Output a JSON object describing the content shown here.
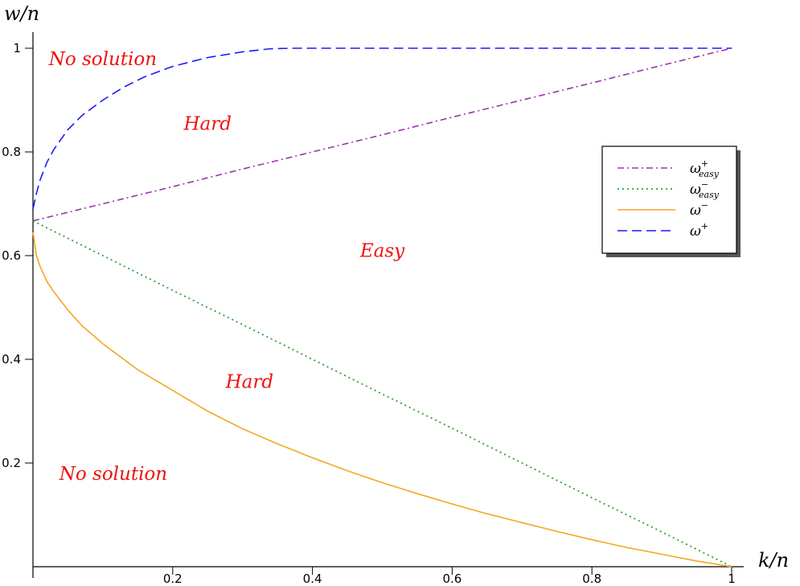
{
  "chart_data": {
    "type": "line",
    "xlabel": "k/n",
    "ylabel": "w/n",
    "xlim": [
      0,
      1
    ],
    "ylim": [
      0,
      1
    ],
    "x_ticks": [
      {
        "value": 0.2,
        "label": "0.2"
      },
      {
        "value": 0.4,
        "label": "0.4"
      },
      {
        "value": 0.6,
        "label": "0.6"
      },
      {
        "value": 0.8,
        "label": "0.8"
      },
      {
        "value": 1,
        "label": "1"
      }
    ],
    "y_ticks": [
      {
        "value": 0.2,
        "label": "0.2"
      },
      {
        "value": 0.4,
        "label": "0.4"
      },
      {
        "value": 0.6,
        "label": "0.6"
      },
      {
        "value": 0.8,
        "label": "0.8"
      },
      {
        "value": 1,
        "label": "1"
      }
    ],
    "legend_position": "right",
    "series": [
      {
        "name": "ω+easy",
        "key": "omega_plus_easy",
        "label_base": "ω",
        "label_sup": "+",
        "label_sub": "easy",
        "color": "#9b30b0",
        "style": "dashdot",
        "x": [
          0,
          0.1,
          0.2,
          0.3,
          0.4,
          0.5,
          0.6,
          0.7,
          0.8,
          0.9,
          1.0
        ],
        "y": [
          0.667,
          0.7,
          0.733,
          0.767,
          0.8,
          0.833,
          0.867,
          0.9,
          0.933,
          0.967,
          1.0
        ]
      },
      {
        "name": "ω−easy",
        "key": "omega_minus_easy",
        "label_base": "ω",
        "label_sup": "−",
        "label_sub": "easy",
        "color": "#2ca02c",
        "style": "dotted",
        "x": [
          0,
          0.1,
          0.2,
          0.3,
          0.4,
          0.5,
          0.6,
          0.7,
          0.8,
          0.9,
          1.0
        ],
        "y": [
          0.667,
          0.6,
          0.533,
          0.467,
          0.4,
          0.333,
          0.267,
          0.2,
          0.133,
          0.067,
          0.0
        ]
      },
      {
        "name": "ω−",
        "key": "omega_minus",
        "label_base": "ω",
        "label_sup": "−",
        "label_sub": "",
        "color": "#f5a623",
        "style": "solid",
        "x": [
          0,
          0.005,
          0.01,
          0.02,
          0.03,
          0.05,
          0.07,
          0.1,
          0.15,
          0.2,
          0.25,
          0.3,
          0.35,
          0.4,
          0.45,
          0.5,
          0.55,
          0.6,
          0.65,
          0.7,
          0.75,
          0.8,
          0.85,
          0.9,
          0.95,
          1.0
        ],
        "y": [
          0.645,
          0.6,
          0.58,
          0.55,
          0.53,
          0.495,
          0.465,
          0.43,
          0.38,
          0.34,
          0.3,
          0.266,
          0.237,
          0.21,
          0.185,
          0.162,
          0.141,
          0.121,
          0.102,
          0.085,
          0.068,
          0.052,
          0.037,
          0.024,
          0.011,
          0.0
        ]
      },
      {
        "name": "ω+",
        "key": "omega_plus",
        "label_base": "ω",
        "label_sup": "+",
        "label_sub": "",
        "color": "#1a1aff",
        "style": "dashed",
        "x": [
          0,
          0.005,
          0.01,
          0.02,
          0.03,
          0.05,
          0.07,
          0.1,
          0.13,
          0.16,
          0.2,
          0.25,
          0.3,
          0.34,
          0.37,
          0.5,
          0.7,
          1.0
        ],
        "y": [
          0.69,
          0.72,
          0.745,
          0.78,
          0.805,
          0.843,
          0.87,
          0.9,
          0.925,
          0.945,
          0.965,
          0.982,
          0.993,
          0.999,
          1.0,
          1.0,
          1.0,
          1.0
        ]
      }
    ],
    "annotations": [
      {
        "key": "no_solution_top",
        "text": "No solution",
        "x": 0.1,
        "y": 0.98
      },
      {
        "key": "hard_top",
        "text": "Hard",
        "x": 0.25,
        "y": 0.855
      },
      {
        "key": "easy",
        "text": "Easy",
        "x": 0.5,
        "y": 0.61
      },
      {
        "key": "hard_bottom",
        "text": "Hard",
        "x": 0.31,
        "y": 0.357
      },
      {
        "key": "no_solution_bottom",
        "text": "No solution",
        "x": 0.115,
        "y": 0.18
      }
    ]
  }
}
